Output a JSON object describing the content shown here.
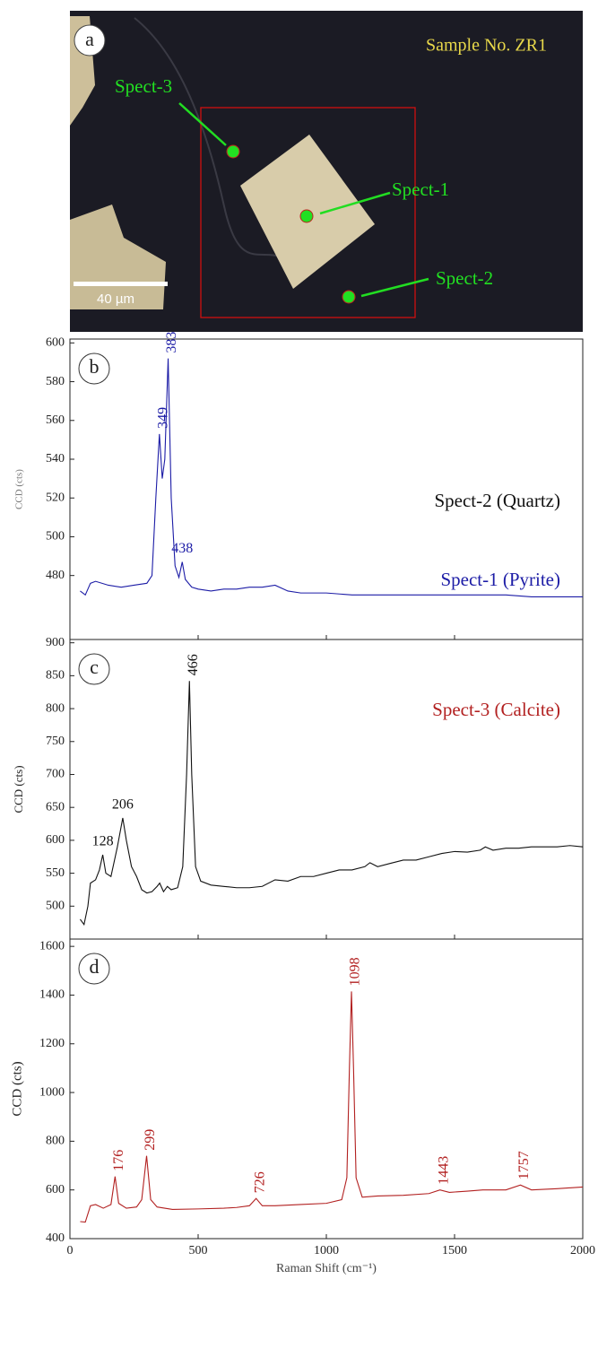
{
  "image_panel": {
    "panel_label": "a",
    "title": "Sample No. ZR1",
    "points": [
      {
        "label": "Spect-3"
      },
      {
        "label": "Spect-1"
      },
      {
        "label": "Spect-2"
      }
    ],
    "scale_bar": "40 µm"
  },
  "chart_data": [
    {
      "type": "line",
      "panel_label": "b",
      "ylabel": "CCD (cts)",
      "xlim": [
        0,
        2000
      ],
      "ylim": [
        447,
        602
      ],
      "yticks": [
        480,
        500,
        520,
        540,
        560,
        580,
        600
      ],
      "x": [
        40,
        60,
        80,
        100,
        150,
        200,
        250,
        300,
        320,
        335,
        349,
        360,
        370,
        383,
        395,
        410,
        425,
        438,
        450,
        475,
        500,
        550,
        600,
        650,
        700,
        750,
        800,
        850,
        900,
        1000,
        1100,
        1200,
        1300,
        1400,
        1500,
        1600,
        1700,
        1800,
        1900,
        2000
      ],
      "series": [
        {
          "name": "Spect-1 (Pyrite)",
          "color": "#1c1ca6",
          "values": [
            472,
            470,
            476,
            477,
            475,
            474,
            475,
            476,
            480,
            520,
            553,
            530,
            540,
            592,
            520,
            485,
            479,
            487,
            478,
            474,
            473,
            472,
            473,
            473,
            474,
            474,
            475,
            472,
            471,
            471,
            470,
            470,
            470,
            470,
            470,
            470,
            470,
            469,
            469,
            469
          ]
        }
      ],
      "peak_labels": [
        349,
        383,
        438
      ]
    },
    {
      "type": "line",
      "panel_label": "c",
      "ylabel": "CCD (cts)",
      "xlim": [
        0,
        2000
      ],
      "ylim": [
        450,
        905
      ],
      "yticks": [
        500,
        550,
        600,
        650,
        700,
        750,
        800,
        850,
        900
      ],
      "x": [
        40,
        55,
        70,
        80,
        100,
        115,
        128,
        140,
        160,
        185,
        206,
        220,
        240,
        260,
        280,
        300,
        320,
        340,
        350,
        365,
        380,
        395,
        420,
        440,
        455,
        466,
        475,
        490,
        510,
        550,
        600,
        650,
        700,
        750,
        800,
        850,
        900,
        950,
        1000,
        1050,
        1100,
        1150,
        1170,
        1200,
        1250,
        1300,
        1350,
        1400,
        1450,
        1500,
        1550,
        1600,
        1620,
        1650,
        1700,
        1750,
        1800,
        1850,
        1900,
        1950,
        2000
      ],
      "series": [
        {
          "name": "Spect-2 (Quartz)",
          "color": "#111111",
          "values": [
            480,
            472,
            500,
            535,
            540,
            555,
            578,
            550,
            545,
            590,
            634,
            600,
            560,
            545,
            525,
            520,
            522,
            530,
            535,
            522,
            530,
            525,
            528,
            560,
            700,
            842,
            700,
            560,
            538,
            532,
            530,
            528,
            528,
            530,
            540,
            538,
            545,
            545,
            550,
            555,
            555,
            560,
            566,
            560,
            565,
            570,
            570,
            575,
            580,
            583,
            582,
            585,
            590,
            585,
            588,
            588,
            590,
            590,
            590,
            592,
            590
          ]
        }
      ],
      "peak_labels": [
        128,
        206,
        466
      ]
    },
    {
      "type": "line",
      "panel_label": "d",
      "ylabel": "CCD (cts)",
      "xlabel": "Raman Shift (cm⁻¹)",
      "xlim": [
        0,
        2000
      ],
      "xticks": [
        0,
        500,
        1000,
        1500,
        2000
      ],
      "ylim": [
        400,
        1630
      ],
      "yticks": [
        400,
        600,
        800,
        1000,
        1200,
        1400,
        1600
      ],
      "x": [
        40,
        60,
        80,
        100,
        130,
        160,
        176,
        190,
        220,
        260,
        280,
        299,
        315,
        340,
        400,
        500,
        600,
        650,
        700,
        726,
        750,
        800,
        900,
        1000,
        1060,
        1080,
        1090,
        1098,
        1106,
        1116,
        1140,
        1200,
        1300,
        1400,
        1443,
        1480,
        1550,
        1610,
        1650,
        1700,
        1757,
        1800,
        1900,
        2000
      ],
      "series": [
        {
          "name": "Spect-3 (Calcite)",
          "color": "#b22020",
          "values": [
            470,
            468,
            535,
            540,
            525,
            540,
            655,
            545,
            525,
            530,
            560,
            740,
            560,
            530,
            520,
            522,
            525,
            528,
            535,
            565,
            535,
            535,
            540,
            545,
            560,
            650,
            1100,
            1415,
            1100,
            650,
            570,
            575,
            578,
            585,
            600,
            590,
            595,
            600,
            600,
            600,
            620,
            600,
            605,
            612
          ]
        }
      ],
      "peak_labels": [
        176,
        299,
        726,
        1098,
        1443,
        1757
      ]
    }
  ]
}
